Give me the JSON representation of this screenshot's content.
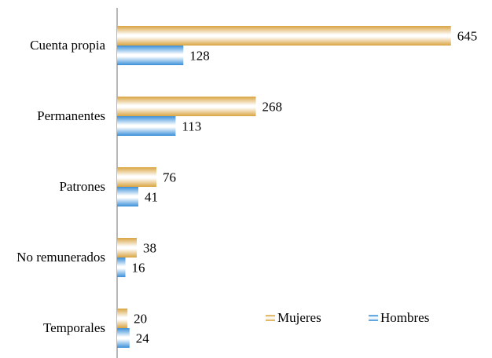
{
  "chart_data": {
    "type": "bar",
    "orientation": "horizontal",
    "categories": [
      "Cuenta propia",
      "Permanentes",
      "Patrones",
      "No remunerados",
      "Temporales"
    ],
    "series": [
      {
        "name": "Mujeres",
        "color": "#d9a441",
        "values": [
          645,
          268,
          76,
          38,
          20
        ]
      },
      {
        "name": "Hombres",
        "color": "#3a8fd9",
        "values": [
          128,
          113,
          41,
          16,
          24
        ]
      }
    ],
    "xlim": [
      0,
      700
    ],
    "legend": "lower right"
  }
}
